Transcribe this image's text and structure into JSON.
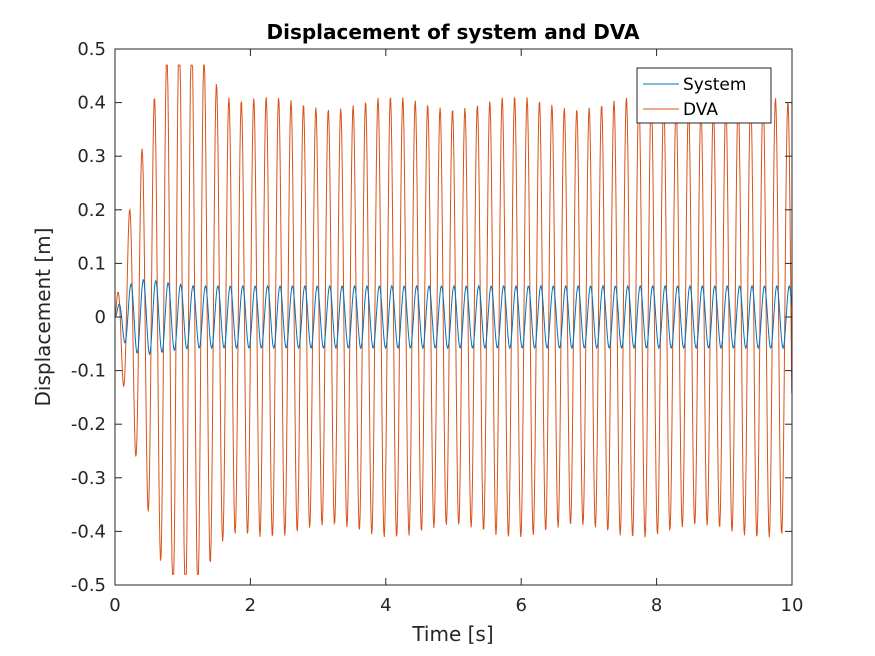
{
  "chart_data": {
    "type": "line",
    "title": "Displacement of system and DVA",
    "xlabel": "Time [s]",
    "ylabel": "Displacement [m]",
    "xlim": [
      0,
      10
    ],
    "ylim": [
      -0.5,
      0.5
    ],
    "xticks": [
      0,
      2,
      4,
      6,
      8,
      10
    ],
    "yticks": [
      -0.5,
      -0.4,
      -0.3,
      -0.2,
      -0.1,
      0,
      0.1,
      0.2,
      0.3,
      0.4,
      0.5
    ],
    "xtick_labels": [
      "0",
      "2",
      "4",
      "6",
      "8",
      "10"
    ],
    "ytick_labels": [
      "-0.5",
      "-0.4",
      "-0.3",
      "-0.2",
      "-0.1",
      "0",
      "0.1",
      "0.2",
      "0.3",
      "0.4",
      "0.5"
    ],
    "grid": false,
    "legend_position": "top-right",
    "series": [
      {
        "name": "System",
        "color": "#0072BD",
        "steady_amplitude": 0.058,
        "steady_frequency_hz": 5.45,
        "transient_peak": 0.095
      },
      {
        "name": "DVA",
        "color": "#D95319",
        "steady_amplitude": 0.4,
        "steady_frequency_hz": 5.45,
        "transient_peak": 0.47,
        "transient_trough": -0.48
      }
    ]
  }
}
